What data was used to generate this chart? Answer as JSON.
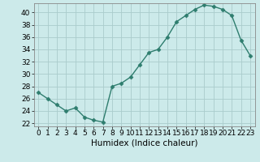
{
  "x": [
    0,
    1,
    2,
    3,
    4,
    5,
    6,
    7,
    8,
    9,
    10,
    11,
    12,
    13,
    14,
    15,
    16,
    17,
    18,
    19,
    20,
    21,
    22,
    23
  ],
  "y": [
    27,
    26,
    25,
    24,
    24.5,
    23,
    22.5,
    22.2,
    28,
    28.5,
    29.5,
    31.5,
    33.5,
    34,
    36,
    38.5,
    39.5,
    40.5,
    41.2,
    41,
    40.5,
    39.5,
    35.5,
    33
  ],
  "line_color": "#2e7d6e",
  "marker": "D",
  "marker_size": 2.5,
  "line_width": 1.0,
  "bg_color": "#cceaea",
  "grid_color": "#aacccc",
  "xlabel": "Humidex (Indice chaleur)",
  "xlabel_fontsize": 7.5,
  "tick_fontsize": 6.5,
  "ylim": [
    21.5,
    41.5
  ],
  "xlim": [
    -0.5,
    23.5
  ],
  "yticks": [
    22,
    24,
    26,
    28,
    30,
    32,
    34,
    36,
    38,
    40
  ],
  "xticks": [
    0,
    1,
    2,
    3,
    4,
    5,
    6,
    7,
    8,
    9,
    10,
    11,
    12,
    13,
    14,
    15,
    16,
    17,
    18,
    19,
    20,
    21,
    22,
    23
  ]
}
